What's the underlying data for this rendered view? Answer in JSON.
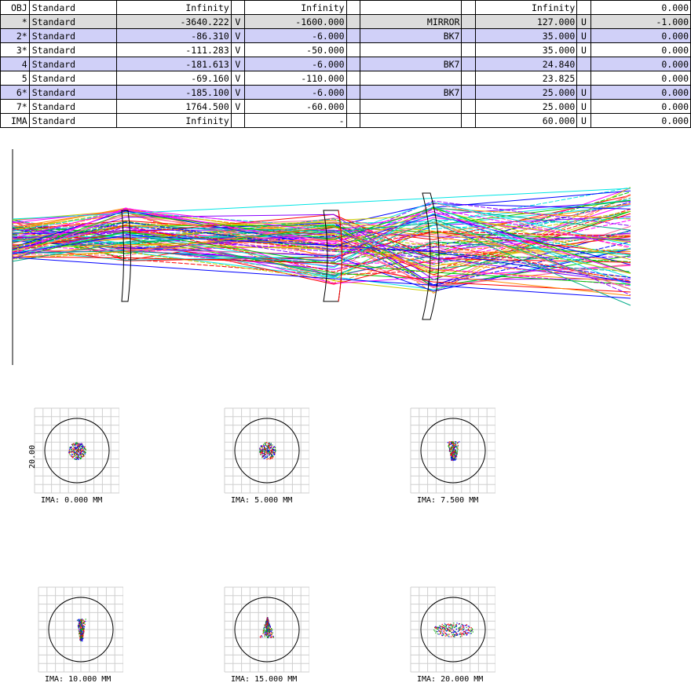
{
  "lens_table": {
    "rows": [
      {
        "surf": "OBJ",
        "type": "Standard",
        "radius": "Infinity",
        "r_solve": "",
        "thickness": "Infinity",
        "t_solve": "",
        "glass": "",
        "semi_dia": "Infinity",
        "sd_solve": "",
        "conic": "0.000",
        "style": "plain"
      },
      {
        "surf": "*",
        "type": "Standard",
        "radius": "-3640.222",
        "r_solve": "V",
        "thickness": "-1600.000",
        "t_solve": "",
        "glass": "MIRROR",
        "semi_dia": "127.000",
        "sd_solve": "U",
        "conic": "-1.000",
        "style": "obj"
      },
      {
        "surf": "2*",
        "type": "Standard",
        "radius": "-86.310",
        "r_solve": "V",
        "thickness": "-6.000",
        "t_solve": "",
        "glass": "BK7",
        "semi_dia": "35.000",
        "sd_solve": "U",
        "conic": "0.000",
        "style": "hl"
      },
      {
        "surf": "3*",
        "type": "Standard",
        "radius": "-111.283",
        "r_solve": "V",
        "thickness": "-50.000",
        "t_solve": "",
        "glass": "",
        "semi_dia": "35.000",
        "sd_solve": "U",
        "conic": "0.000",
        "style": "plain"
      },
      {
        "surf": "4",
        "type": "Standard",
        "radius": "-181.613",
        "r_solve": "V",
        "thickness": "-6.000",
        "t_solve": "",
        "glass": "BK7",
        "semi_dia": "24.840",
        "sd_solve": "",
        "conic": "0.000",
        "style": "hl"
      },
      {
        "surf": "5",
        "type": "Standard",
        "radius": "-69.160",
        "r_solve": "V",
        "thickness": "-110.000",
        "t_solve": "",
        "glass": "",
        "semi_dia": "23.825",
        "sd_solve": "",
        "conic": "0.000",
        "style": "plain"
      },
      {
        "surf": "6*",
        "type": "Standard",
        "radius": "-185.100",
        "r_solve": "V",
        "thickness": "-6.000",
        "t_solve": "",
        "glass": "BK7",
        "semi_dia": "25.000",
        "sd_solve": "U",
        "conic": "0.000",
        "style": "hl"
      },
      {
        "surf": "7*",
        "type": "Standard",
        "radius": "1764.500",
        "r_solve": "V",
        "thickness": "-60.000",
        "t_solve": "",
        "glass": "",
        "semi_dia": "25.000",
        "sd_solve": "U",
        "conic": "0.000",
        "style": "plain"
      },
      {
        "surf": "IMA",
        "type": "Standard",
        "radius": "Infinity",
        "r_solve": "",
        "thickness": "-",
        "t_solve": "",
        "glass": "",
        "semi_dia": "60.000",
        "sd_solve": "U",
        "conic": "0.000",
        "style": "plain"
      }
    ]
  },
  "colors": {
    "highlight": "#d0d0f8",
    "object_row": "#dcdcdc",
    "ray_colors": [
      "#00e5e5",
      "#ff00ff",
      "#0000ff",
      "#00cc00",
      "#cccc00",
      "#ff0000",
      "#ff8800",
      "#8800ff",
      "#ff6699",
      "#00aa88"
    ]
  },
  "layout_plot": {
    "elements": [
      "lens-1",
      "lens-2",
      "lens-3",
      "image-plane"
    ]
  },
  "spot_diagrams": {
    "scale_label": "20.00",
    "fields": [
      {
        "label": "IMA: 0.000 MM",
        "shape": "round"
      },
      {
        "label": "IMA: 5.000 MM",
        "shape": "round"
      },
      {
        "label": "IMA: 7.500 MM",
        "shape": "teardrop"
      },
      {
        "label": "IMA: 10.000 MM",
        "shape": "teardrop-long"
      },
      {
        "label": "IMA: 15.000 MM",
        "shape": "coma"
      },
      {
        "label": "IMA: 20.000 MM",
        "shape": "flat"
      }
    ]
  }
}
